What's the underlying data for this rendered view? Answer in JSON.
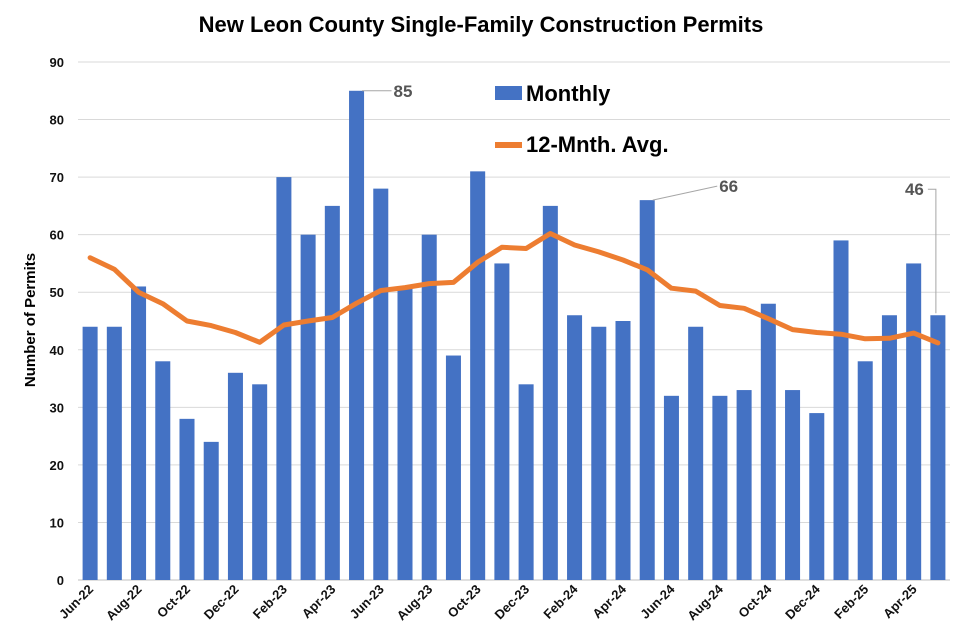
{
  "colors": {
    "bar": "#4472C4",
    "line": "#ED7D31",
    "grid": "#D9D9D9",
    "callout_line": "#A6A6A6"
  },
  "chart_data": {
    "type": "bar",
    "title": "New Leon County Single-Family Construction Permits",
    "ylabel": "Number of Permits",
    "xlabel": "",
    "ylim": [
      0,
      90
    ],
    "yticks": [
      0,
      10,
      20,
      30,
      40,
      50,
      60,
      70,
      80,
      90
    ],
    "grid": "horizontal",
    "legend_position": "top-center",
    "categories": [
      "Jun-22",
      "Jul-22",
      "Aug-22",
      "Sep-22",
      "Oct-22",
      "Nov-22",
      "Dec-22",
      "Jan-23",
      "Feb-23",
      "Mar-23",
      "Apr-23",
      "May-23",
      "Jun-23",
      "Jul-23",
      "Aug-23",
      "Sep-23",
      "Oct-23",
      "Nov-23",
      "Dec-23",
      "Jan-24",
      "Feb-24",
      "Mar-24",
      "Apr-24",
      "May-24",
      "Jun-24",
      "Jul-24",
      "Aug-24",
      "Sep-24",
      "Oct-24",
      "Nov-24",
      "Dec-24",
      "Jan-25",
      "Feb-25",
      "Mar-25",
      "Apr-25",
      "May-25"
    ],
    "x_tick_labels": [
      "Jun-22",
      "",
      "Aug-22",
      "",
      "Oct-22",
      "",
      "Dec-22",
      "",
      "Feb-23",
      "",
      "Apr-23",
      "",
      "Jun-23",
      "",
      "Aug-23",
      "",
      "Oct-23",
      "",
      "Dec-23",
      "",
      "Feb-24",
      "",
      "Apr-24",
      "",
      "Jun-24",
      "",
      "Aug-24",
      "",
      "Oct-24",
      "",
      "Dec-24",
      "",
      "Feb-25",
      "",
      "Apr-25",
      ""
    ],
    "series": [
      {
        "name": "Monthly",
        "type": "bar",
        "values": [
          44,
          44,
          51,
          38,
          28,
          24,
          36,
          34,
          70,
          60,
          65,
          85,
          68,
          51,
          60,
          39,
          71,
          55,
          34,
          65,
          46,
          44,
          45,
          66,
          32,
          44,
          32,
          33,
          48,
          33,
          29,
          59,
          38,
          46,
          55,
          46
        ]
      },
      {
        "name": "12-Mnth. Avg.",
        "type": "line",
        "values": [
          56,
          54,
          50,
          48,
          45,
          44.2,
          43,
          41.3,
          44.3,
          45,
          45.6,
          48.1,
          50.3,
          50.8,
          51.5,
          51.7,
          55.2,
          57.8,
          57.6,
          60.2,
          58.2,
          57,
          55.6,
          53.9,
          50.7,
          50.2,
          47.7,
          47.2,
          45.4,
          43.5,
          43,
          42.7,
          41.9,
          42,
          42.9,
          41.2
        ]
      }
    ],
    "annotations": [
      {
        "index": 11,
        "label": "85"
      },
      {
        "index": 23,
        "label": "66"
      },
      {
        "index": 35,
        "label": "46"
      }
    ]
  }
}
